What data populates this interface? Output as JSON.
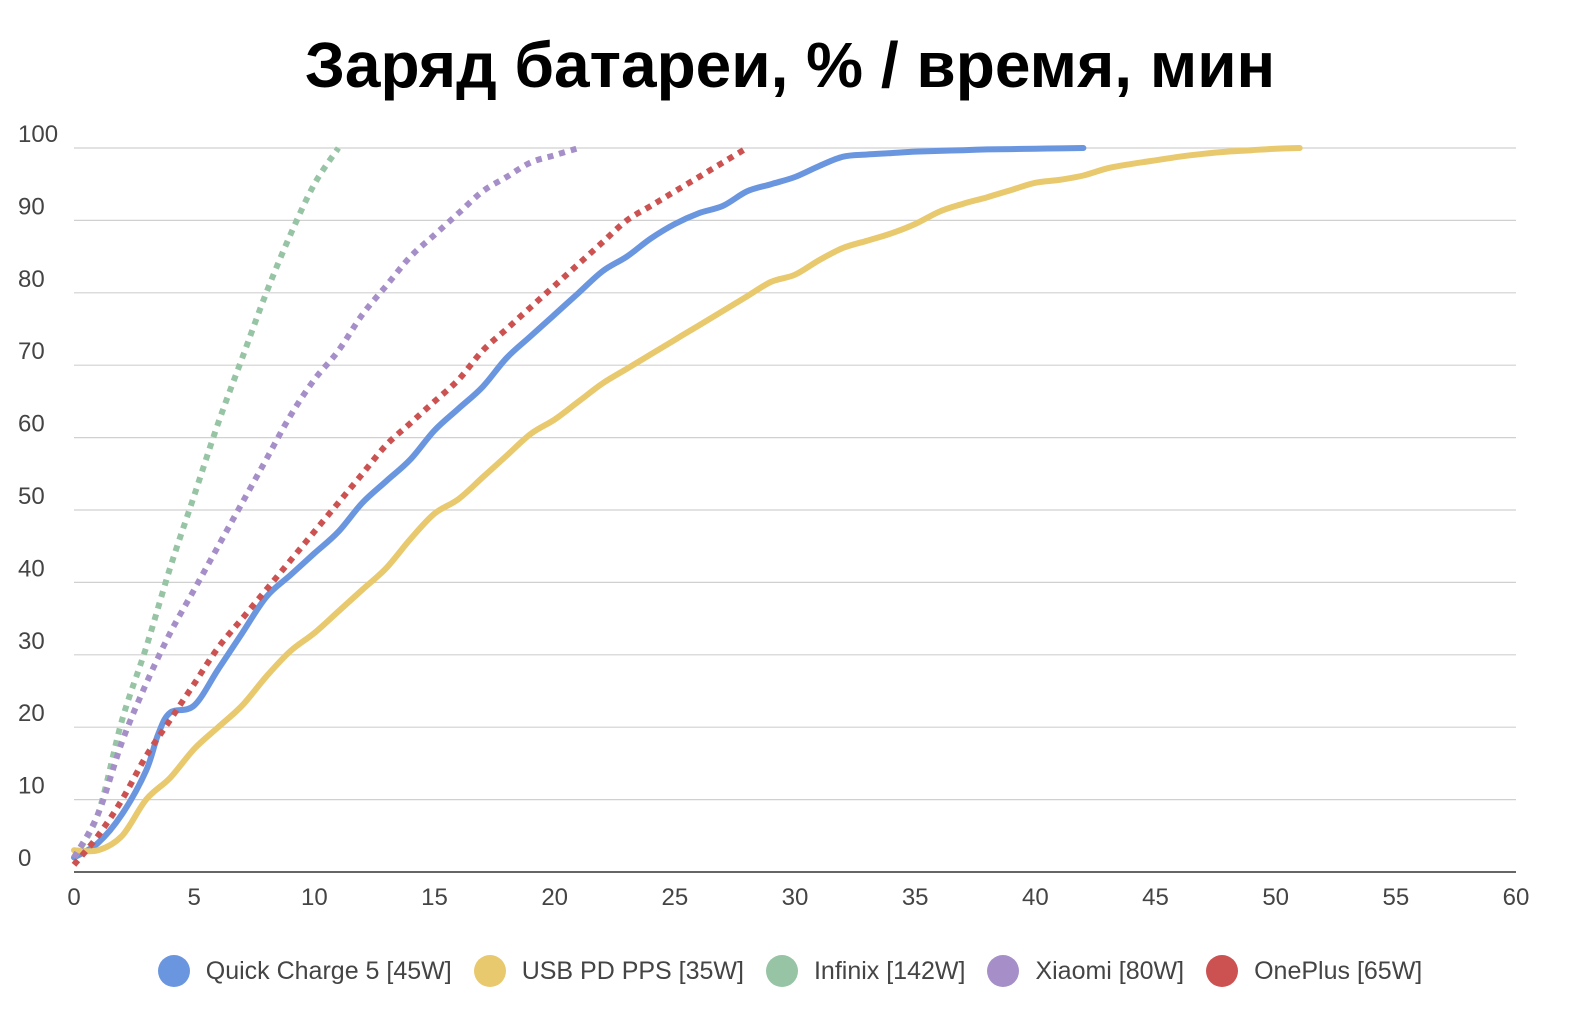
{
  "chart_data": {
    "type": "line",
    "title": "Заряд батареи, % / время, мин",
    "xlim": [
      0,
      60
    ],
    "ylim": [
      0,
      100
    ],
    "x_ticks": [
      "0",
      "5",
      "10",
      "15",
      "20",
      "25",
      "30",
      "35",
      "40",
      "45",
      "50",
      "55",
      "60"
    ],
    "y_ticks": [
      "0",
      "10",
      "20",
      "30",
      "40",
      "50",
      "60",
      "70",
      "80",
      "90",
      "100"
    ],
    "grid": true,
    "legend_position": "bottom",
    "series": [
      {
        "name": "Quick Charge 5 [45W]",
        "color": "#6a96e0",
        "style": "solid",
        "x": [
          0,
          1,
          2,
          3,
          3.5,
          4,
          5,
          6,
          7,
          8,
          9,
          10,
          11,
          12,
          13,
          14,
          15,
          16,
          17,
          18,
          19,
          20,
          21,
          22,
          23,
          24,
          25,
          26,
          27,
          28,
          29,
          30,
          31,
          32,
          33,
          34,
          35,
          36,
          37,
          38,
          39,
          40,
          41,
          42
        ],
        "y": [
          2,
          4,
          8,
          14,
          19,
          22,
          23,
          28,
          33,
          38,
          41,
          44,
          47,
          51,
          54,
          57,
          61,
          64,
          67,
          71,
          74,
          77,
          80,
          83,
          85,
          87.5,
          89.5,
          91,
          92,
          94,
          95,
          96,
          97.5,
          98.8,
          99.1,
          99.3,
          99.5,
          99.6,
          99.7,
          99.8,
          99.85,
          99.9,
          99.95,
          100
        ]
      },
      {
        "name": "USB PD PPS [35W]",
        "color": "#e9c96d",
        "style": "solid",
        "x": [
          0,
          1,
          2,
          3,
          4,
          5,
          6,
          7,
          8,
          9,
          10,
          11,
          12,
          13,
          14,
          15,
          16,
          17,
          18,
          19,
          20,
          21,
          22,
          23,
          24,
          25,
          26,
          27,
          28,
          29,
          30,
          31,
          32,
          33,
          34,
          35,
          36,
          37,
          38,
          39,
          40,
          41,
          42,
          43,
          44,
          45,
          46,
          47,
          48,
          49,
          50,
          51
        ],
        "y": [
          3,
          3,
          5,
          10,
          13,
          17,
          20,
          23,
          27,
          30.5,
          33,
          36,
          39,
          42,
          46,
          49.5,
          51.5,
          54.5,
          57.5,
          60.5,
          62.5,
          65,
          67.5,
          69.5,
          71.5,
          73.5,
          75.5,
          77.5,
          79.5,
          81.5,
          82.5,
          84.5,
          86.2,
          87.2,
          88.2,
          89.5,
          91.2,
          92.3,
          93.2,
          94.2,
          95.2,
          95.6,
          96.2,
          97.2,
          97.8,
          98.3,
          98.8,
          99.2,
          99.5,
          99.7,
          99.9,
          100
        ]
      },
      {
        "name": "Infinix [142W]",
        "color": "#96c4a4",
        "style": "dotted",
        "x": [
          0,
          1,
          2,
          3,
          4,
          5,
          6,
          7,
          8,
          9,
          10,
          11
        ],
        "y": [
          2,
          8,
          21,
          31,
          42,
          52,
          62,
          71,
          80,
          88,
          95,
          100
        ]
      },
      {
        "name": "Xiaomi [80W]",
        "color": "#a68fc9",
        "style": "dotted",
        "x": [
          0,
          1,
          2,
          3,
          4,
          5,
          6,
          7,
          8,
          9,
          10,
          11,
          12,
          13,
          14,
          15,
          16,
          17,
          18,
          19,
          20,
          21
        ],
        "y": [
          2,
          8,
          18,
          26,
          33,
          39,
          45,
          51,
          57,
          63,
          68,
          72,
          77,
          81,
          85,
          88,
          91,
          94,
          96,
          98,
          99,
          100
        ]
      },
      {
        "name": "OnePlus [65W]",
        "color": "#cc5252",
        "style": "dotted",
        "x": [
          0,
          1,
          2,
          3,
          4,
          5,
          6,
          7,
          8,
          9,
          10,
          11,
          12,
          13,
          14,
          15,
          16,
          17,
          18,
          19,
          20,
          21,
          22,
          23,
          24,
          25,
          26,
          27,
          28
        ],
        "y": [
          1,
          5,
          10,
          16,
          21,
          26,
          31,
          35,
          39,
          43,
          47,
          51,
          55,
          59,
          62,
          65,
          68,
          72,
          75,
          78,
          81,
          84,
          87,
          90,
          92,
          94,
          96,
          98,
          100
        ]
      }
    ]
  }
}
